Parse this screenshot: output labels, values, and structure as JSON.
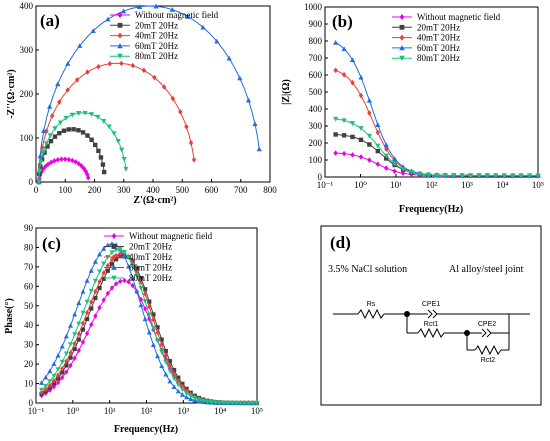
{
  "colors": {
    "without": "#e800e8",
    "m20": "#404040",
    "m40": "#e8403c",
    "m60": "#1f6fe0",
    "m80": "#1ec07a"
  },
  "chart_data": [
    {
      "type": "scatter",
      "panel": "(a)",
      "xlabel": "Z'(Ω·cm²)",
      "ylabel": "-Z''(Ω·cm²)",
      "xlim": [
        0,
        800
      ],
      "ylim": [
        0,
        400
      ],
      "xticks": [
        "0",
        "100",
        "200",
        "300",
        "400",
        "500",
        "600",
        "700",
        "800"
      ],
      "yticks": [
        "0",
        "100",
        "200",
        "300",
        "400"
      ],
      "legend": "top-center",
      "series": [
        {
          "name": "Without magnetic field",
          "key": "without",
          "marker": "diamond",
          "arc": [
            10,
            180,
            52
          ]
        },
        {
          "name": "20mT 20Hz",
          "key": "m20",
          "marker": "square",
          "arc": [
            10,
            235,
            120
          ]
        },
        {
          "name": "40mT 20Hz",
          "key": "m40",
          "marker": "diamond",
          "arc": [
            10,
            545,
            270
          ]
        },
        {
          "name": "60mT 20Hz",
          "key": "m60",
          "marker": "triangle",
          "arc": [
            10,
            770,
            400
          ]
        },
        {
          "name": "80mT 20Hz",
          "key": "m80",
          "marker": "triangle-down",
          "arc": [
            10,
            310,
            157
          ]
        }
      ]
    },
    {
      "type": "scatter",
      "panel": "(b)",
      "xlabel": "Frequency(Hz)",
      "ylabel": "|Z|(Ω)",
      "xscale": "log",
      "xlim": [
        0.1,
        100000
      ],
      "ylim": [
        0,
        1000
      ],
      "xticks": [
        "10⁻¹",
        "10⁰",
        "10¹",
        "10²",
        "10³",
        "10⁴",
        "10⁵"
      ],
      "yticks": [
        "0",
        "100",
        "200",
        "300",
        "400",
        "500",
        "600",
        "700",
        "800",
        "900",
        "1000"
      ],
      "legend": "top-right",
      "series": [
        {
          "name": "Without magnetic field",
          "key": "without",
          "marker": "diamond",
          "low_f_value": 145
        },
        {
          "name": "20mT 20Hz",
          "key": "m20",
          "marker": "square",
          "low_f_value": 255
        },
        {
          "name": "40mT 20Hz",
          "key": "m40",
          "marker": "diamond",
          "low_f_value": 655
        },
        {
          "name": "60mT 20Hz",
          "key": "m60",
          "marker": "triangle",
          "low_f_value": 830
        },
        {
          "name": "80mT 20Hz",
          "key": "m80",
          "marker": "triangle-down",
          "low_f_value": 350
        }
      ],
      "high_f_value": 8
    },
    {
      "type": "scatter",
      "panel": "(c)",
      "xlabel": "Frequency(Hz)",
      "ylabel": "Phase(°)",
      "xscale": "log",
      "xlim": [
        0.1,
        100000
      ],
      "ylim": [
        0,
        90
      ],
      "xticks": [
        "10⁻¹",
        "10⁰",
        "10¹",
        "10²",
        "10³",
        "10⁴",
        "10⁵"
      ],
      "yticks": [
        "0",
        "10",
        "20",
        "30",
        "40",
        "50",
        "60",
        "70",
        "80",
        "90"
      ],
      "legend": "top-right",
      "series": [
        {
          "name": "Without magnetic field",
          "key": "without",
          "marker": "diamond",
          "peak_deg": 63,
          "peak_hz": 25
        },
        {
          "name": "20mT 20Hz",
          "key": "m20",
          "marker": "square",
          "peak_deg": 76,
          "peak_hz": 25
        },
        {
          "name": "40mT 20Hz",
          "key": "m40",
          "marker": "diamond",
          "peak_deg": 77,
          "peak_hz": 22
        },
        {
          "name": "60mT 20Hz",
          "key": "m60",
          "marker": "triangle",
          "peak_deg": 82,
          "peak_hz": 12
        },
        {
          "name": "80mT 20Hz",
          "key": "m80",
          "marker": "triangle-down",
          "peak_deg": 79,
          "peak_hz": 18
        }
      ]
    },
    {
      "type": "diagram",
      "panel": "(d)",
      "solution": "3.5% NaCl solution",
      "joint": "Al alloy/steel joint",
      "elements": {
        "rs": "Rs",
        "cpe1": "CPE1",
        "rct1": "Rct1",
        "cpe2": "CPE2",
        "rct2": "Rct2"
      }
    }
  ]
}
